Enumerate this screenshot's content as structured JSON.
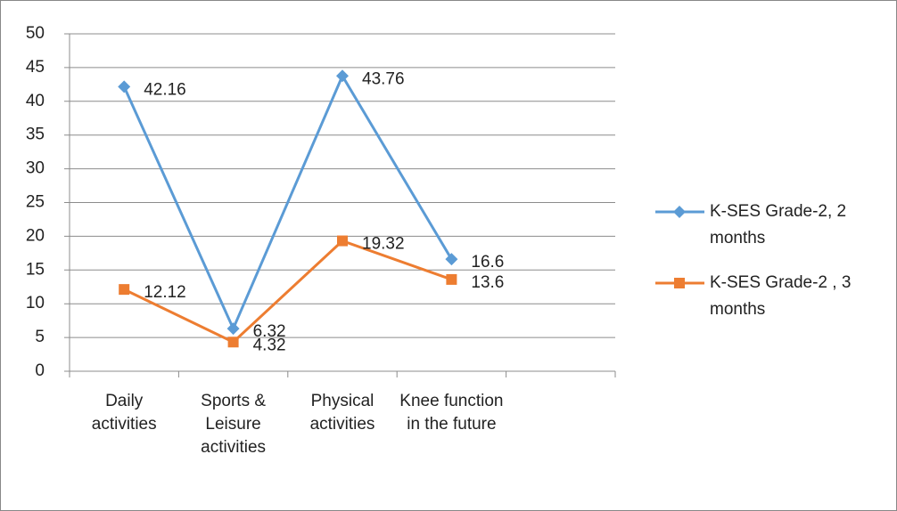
{
  "chart_data": {
    "type": "line",
    "categories": [
      "Daily activities",
      "Sports & Leisure activities",
      "Physical activities",
      "Knee function in the future",
      null
    ],
    "series": [
      {
        "name": "K-SES Grade-2, 2 months",
        "color": "#5b9bd5",
        "marker": "diamond",
        "values": [
          42.16,
          6.32,
          43.76,
          16.6,
          null
        ]
      },
      {
        "name": "K-SES Grade-2 , 3 months",
        "color": "#ed7d31",
        "marker": "square",
        "values": [
          12.12,
          4.32,
          19.32,
          13.6,
          null
        ]
      }
    ],
    "ylim": [
      0,
      50
    ],
    "yticks": [
      0,
      5,
      10,
      15,
      20,
      25,
      30,
      35,
      40,
      45,
      50
    ],
    "grid": true,
    "legend": "right"
  }
}
